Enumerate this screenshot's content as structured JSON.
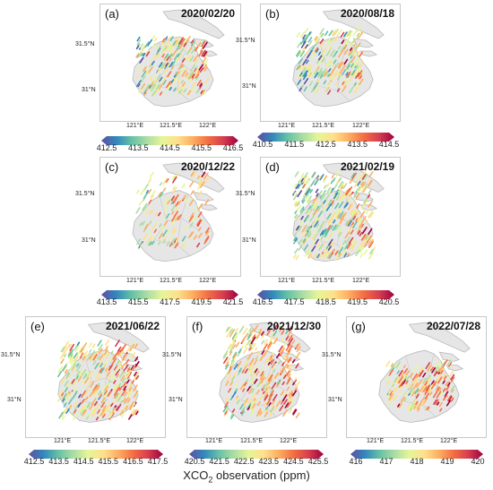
{
  "figure": {
    "xlabel_main": "XCO",
    "xlabel_sub": "2",
    "xlabel_rest": " observation (ppm)"
  },
  "colormap": [
    "#5e4fa2",
    "#3288bd",
    "#66c2a5",
    "#abdda4",
    "#e6f598",
    "#fee08b",
    "#fdae61",
    "#f46d43",
    "#d53e4f",
    "#9e0142"
  ],
  "panels": [
    {
      "label": "(a)",
      "date": "2020/02/20",
      "lat": [
        "31.5°N",
        "31°N"
      ],
      "lon": [
        "121°E",
        "121.5°E",
        "122°E"
      ],
      "ticks": [
        "412.5",
        "413.5",
        "414.5",
        "415.5",
        "416.5"
      ]
    },
    {
      "label": "(b)",
      "date": "2020/08/18",
      "lat": [
        "31.5°N",
        "31°N"
      ],
      "lon": [
        "121°E",
        "121.5°E",
        "122°E"
      ],
      "ticks": [
        "410.5",
        "411.5",
        "412.5",
        "413.5",
        "414.5"
      ]
    },
    {
      "label": "(c)",
      "date": "2020/12/22",
      "lat": [
        "31.5°N",
        "31°N"
      ],
      "lon": [
        "121°E",
        "121.5°E",
        "122°E"
      ],
      "ticks": [
        "413.5",
        "415.5",
        "417.5",
        "419.5",
        "421.5"
      ]
    },
    {
      "label": "(d)",
      "date": "2021/02/19",
      "lat": [
        "31.5°N",
        "31°N"
      ],
      "lon": [
        "121°E",
        "121.5°E",
        "122°E"
      ],
      "ticks": [
        "416.5",
        "417.5",
        "418.5",
        "419.5",
        "420.5"
      ]
    },
    {
      "label": "(e)",
      "date": "2021/06/22",
      "lat": [
        "31.5°N",
        "31°N"
      ],
      "lon": [
        "121°E",
        "121.5°E",
        "122°E"
      ],
      "ticks": [
        "412.5",
        "413.5",
        "414.5",
        "415.5",
        "416.5",
        "417.5"
      ]
    },
    {
      "label": "(f)",
      "date": "2021/12/30",
      "lat": [
        "31.5°N",
        "31°N"
      ],
      "lon": [
        "121°E",
        "121.5°E",
        "122°E"
      ],
      "ticks": [
        "420.5",
        "421.5",
        "422.5",
        "423.5",
        "424.5",
        "425.5"
      ]
    },
    {
      "label": "(g)",
      "date": "2022/07/28",
      "lat": [
        "31.5°N",
        "31°N"
      ],
      "lon": [
        "121°E",
        "121.5°E",
        "122°E"
      ],
      "ticks": [
        "416",
        "417",
        "418",
        "419",
        "420"
      ]
    }
  ]
}
